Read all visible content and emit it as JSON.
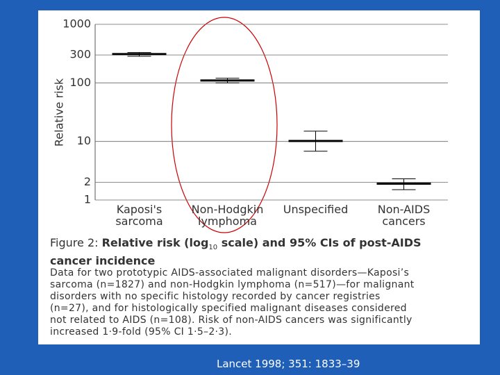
{
  "chart_data": {
    "type": "errorbar",
    "y_label": "Relative risk",
    "categories": [
      "Kaposi's sarcoma",
      "Non-Hodgkin lymphoma",
      "Unspecified",
      "Non-AIDS cancers"
    ],
    "values": [
      310,
      110,
      10.2,
      1.9
    ],
    "lower": [
      285,
      100,
      6.8,
      1.5
    ],
    "upper": [
      330,
      120,
      15,
      2.3
    ],
    "color": "#000000",
    "ylim": [
      1,
      1000
    ],
    "yticks": [
      1,
      2,
      10,
      100,
      300,
      1000
    ],
    "log_scale": true,
    "grid": true
  },
  "caption": {
    "label": "Figure 2:",
    "title": [
      "Relative risk (log",
      "10",
      " scale) and 95% CIs of post-AIDS",
      "cancer incidence"
    ],
    "body": [
      "Data for two prototypic AIDS-associated malignant disorders—Kaposi’s",
      "sarcoma (n=1827) and non-Hodgkin lymphoma (n=517)—for malignant",
      "disorders with no specific histology recorded by cancer registries",
      "(n=27), and for histologically specified malignant diseases considered",
      "not related to AIDS (n=108). Risk of non-AIDS cancers was significantly",
      "increased 1·9-fold (95% CI 1·5–2·3)."
    ]
  },
  "citation": "Lancet 1998; 351: 1833–39"
}
